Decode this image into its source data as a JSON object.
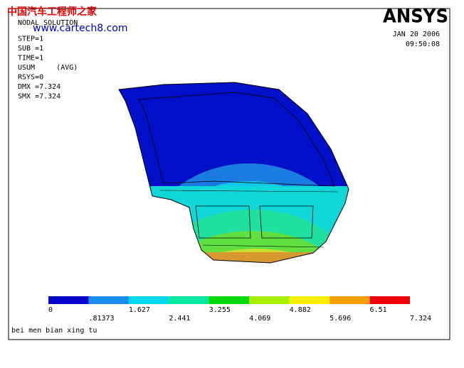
{
  "watermark": {
    "title": "中国汽车工程师之家",
    "url": "www.cartech8.com"
  },
  "info": [
    "NODAL SOLUTION",
    "STEP=1",
    "SUB =1",
    "TIME=1",
    "USUM     (AVG)",
    "RSYS=0",
    "DMX =7.324",
    "SMX =7.324"
  ],
  "logo": "ANSYS",
  "date": "JAN 20 2006",
  "time": "09:50:08",
  "legend": {
    "labels": [
      "0",
      ".81373",
      "1.627",
      "2.441",
      "3.255",
      "4.069",
      "4.882",
      "5.696",
      "6.51",
      "7.324"
    ],
    "colors": [
      "#0000c8",
      "#1a8cf0",
      "#00d8f0",
      "#00e8a0",
      "#00d800",
      "#a8f000",
      "#f8f000",
      "#f8a000",
      "#f00000"
    ]
  },
  "caption": "bei men bian xing tu"
}
